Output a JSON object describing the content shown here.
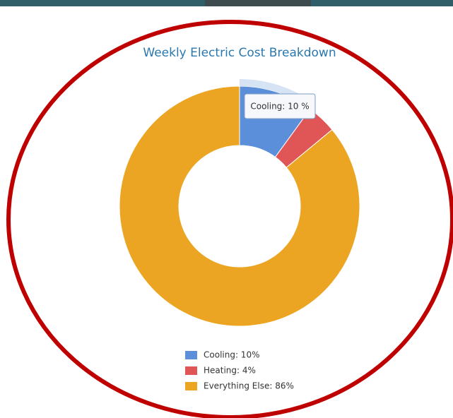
{
  "chart_data": {
    "type": "pie",
    "title": "Weekly Electric Cost Breakdown",
    "categories": [
      "Cooling",
      "Heating",
      "Everything Else"
    ],
    "values": [
      10,
      4,
      86
    ],
    "colors": [
      "#5b8fd9",
      "#e05555",
      "#eba522"
    ],
    "legend_labels": [
      "Cooling: 10%",
      "Heating: 4%",
      "Everything Else: 86%"
    ],
    "tooltip": "Cooling: 10 %",
    "legend": "bottom"
  }
}
